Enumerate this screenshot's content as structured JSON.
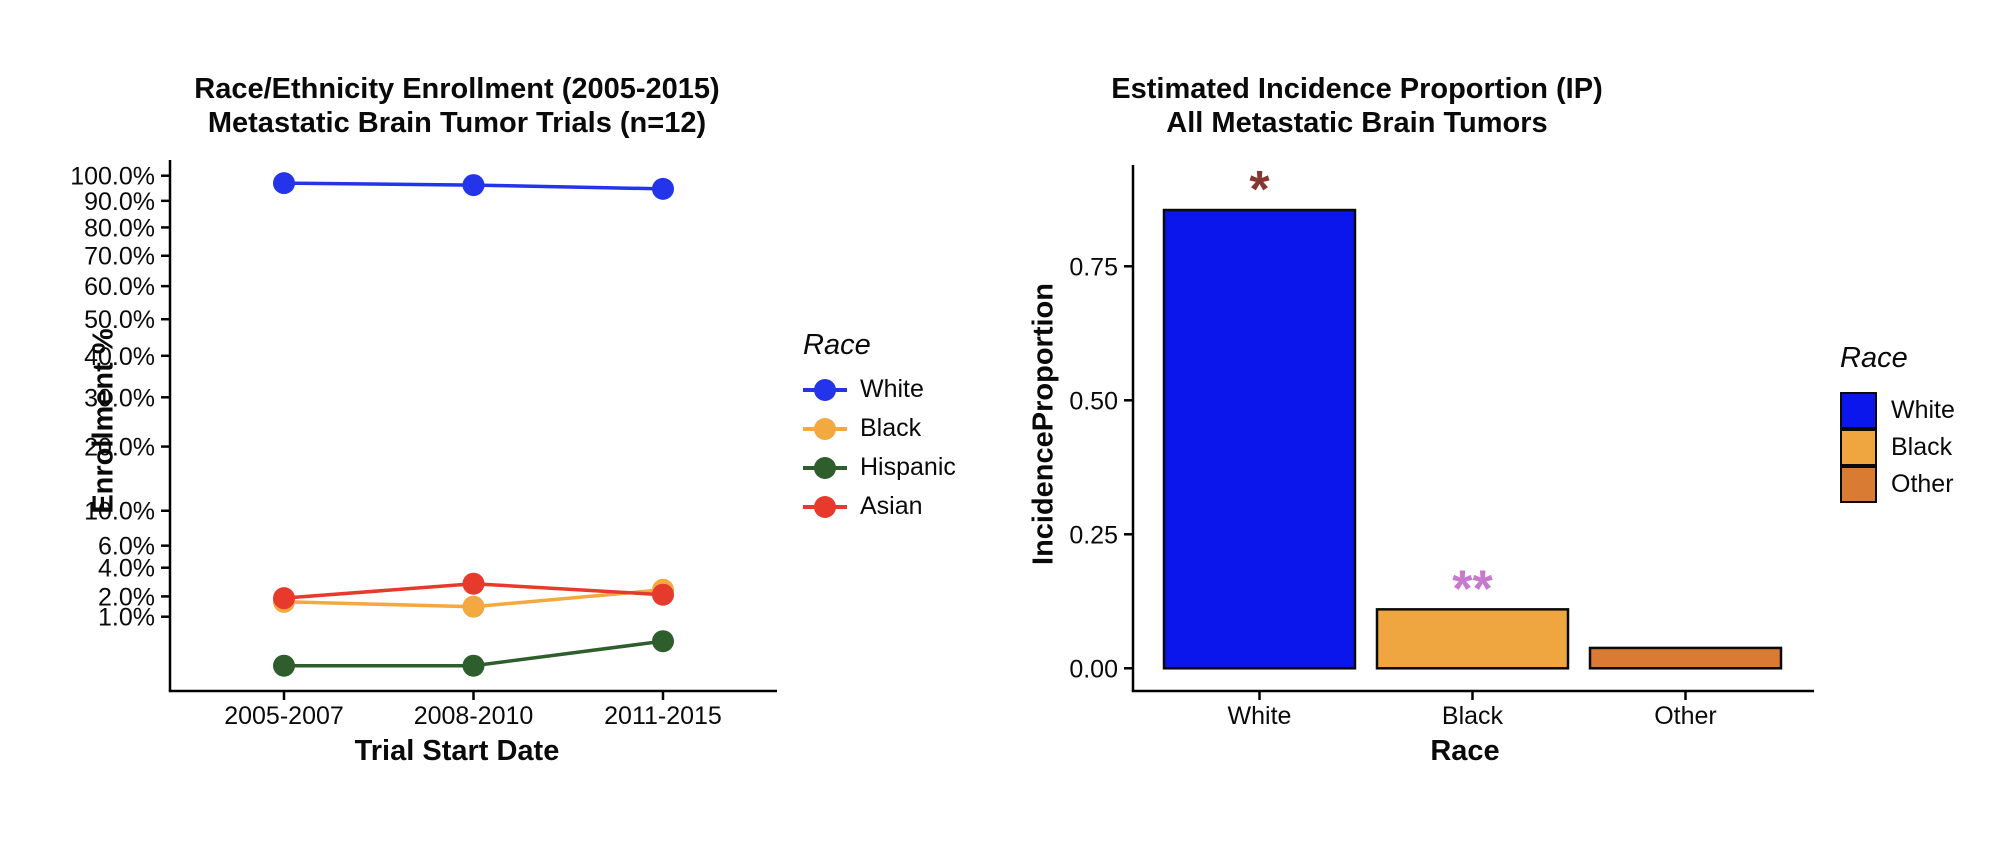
{
  "chart_data": [
    {
      "type": "line",
      "title_line1": "Race/Ethnicity Enrollment (2005-2015)",
      "title_line2": "Metastatic Brain Tumor Trials (n=12)",
      "xlabel": "Trial Start Date",
      "ylabel": "Enrollment %",
      "y_scale": "sqrt",
      "x_categories": [
        "2005-2007",
        "2008-2010",
        "2011-2015"
      ],
      "y_ticks": [
        {
          "value": 100,
          "label": "100.0%"
        },
        {
          "value": 90,
          "label": "90.0%"
        },
        {
          "value": 80,
          "label": "80.0%"
        },
        {
          "value": 70,
          "label": "70.0%"
        },
        {
          "value": 60,
          "label": "60.0%"
        },
        {
          "value": 50,
          "label": "50.0%"
        },
        {
          "value": 40,
          "label": "40.0%"
        },
        {
          "value": 30,
          "label": "30.0%"
        },
        {
          "value": 20,
          "label": "20.0%"
        },
        {
          "value": 10,
          "label": "10.0%"
        },
        {
          "value": 6,
          "label": "6.0%"
        },
        {
          "value": 4,
          "label": "4.0%"
        },
        {
          "value": 2,
          "label": "2.0%"
        },
        {
          "value": 1,
          "label": "1.0%"
        }
      ],
      "series": [
        {
          "name": "White",
          "color": "#2434ea",
          "values": [
            97.0,
            96.2,
            94.7
          ]
        },
        {
          "name": "Black",
          "color": "#f3a840",
          "values": [
            1.7,
            1.45,
            2.4
          ]
        },
        {
          "name": "Hispanic",
          "color": "#2d5e2c",
          "values": [
            0.0,
            0.0,
            0.25
          ]
        },
        {
          "name": "Asian",
          "color": "#e63a2c",
          "values": [
            1.9,
            2.8,
            2.1
          ]
        }
      ],
      "legend": {
        "title": "Race",
        "entries": [
          {
            "label": "White",
            "color": "#2434ea"
          },
          {
            "label": "Black",
            "color": "#f3a840"
          },
          {
            "label": "Hispanic",
            "color": "#2d5e2c"
          },
          {
            "label": "Asian",
            "color": "#e63a2c"
          }
        ]
      }
    },
    {
      "type": "bar",
      "title_line1": "Estimated Incidence Proportion (IP)",
      "title_line2": "All Metastatic Brain Tumors",
      "xlabel": "Race",
      "ylabel": "IncidenceProportion",
      "categories": [
        "White",
        "Black",
        "Other"
      ],
      "values": [
        0.855,
        0.11,
        0.038
      ],
      "bar_colors": [
        "#0a16ec",
        "#f0a640",
        "#d97b33"
      ],
      "ylim": [
        0,
        0.9
      ],
      "y_ticks": [
        {
          "value": 0.0,
          "label": "0.00"
        },
        {
          "value": 0.25,
          "label": "0.25"
        },
        {
          "value": 0.5,
          "label": "0.50"
        },
        {
          "value": 0.75,
          "label": "0.75"
        }
      ],
      "annotations": [
        {
          "text": "*",
          "category": "White",
          "color": "#873530"
        },
        {
          "text": "**",
          "category": "Black",
          "color": "#c879ce"
        }
      ],
      "legend": {
        "title": "Race",
        "entries": [
          {
            "label": "White",
            "color": "#0a16ec"
          },
          {
            "label": "Black",
            "color": "#f0a640"
          },
          {
            "label": "Other",
            "color": "#d97b33"
          }
        ]
      }
    }
  ]
}
